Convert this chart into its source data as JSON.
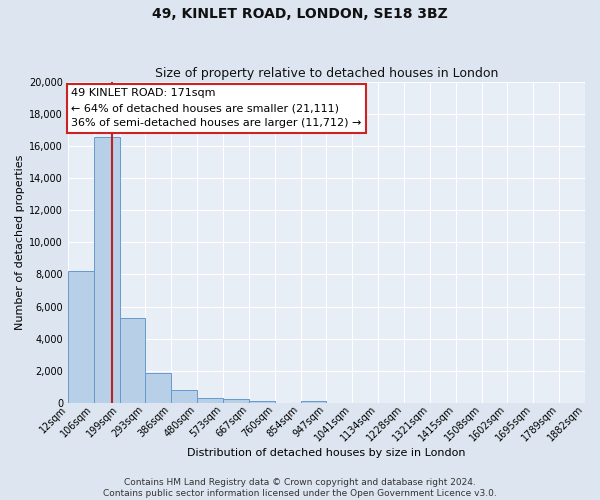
{
  "title": "49, KINLET ROAD, LONDON, SE18 3BZ",
  "subtitle": "Size of property relative to detached houses in London",
  "xlabel": "Distribution of detached houses by size in London",
  "ylabel": "Number of detached properties",
  "bin_labels": [
    "12sqm",
    "106sqm",
    "199sqm",
    "293sqm",
    "386sqm",
    "480sqm",
    "573sqm",
    "667sqm",
    "760sqm",
    "854sqm",
    "947sqm",
    "1041sqm",
    "1134sqm",
    "1228sqm",
    "1321sqm",
    "1415sqm",
    "1508sqm",
    "1602sqm",
    "1695sqm",
    "1789sqm",
    "1882sqm"
  ],
  "bar_values": [
    8200,
    16600,
    5300,
    1850,
    800,
    280,
    200,
    130,
    0,
    130,
    0,
    0,
    0,
    0,
    0,
    0,
    0,
    0,
    0,
    0
  ],
  "bar_color": "#b8cfe8",
  "bar_edge_color": "#6699cc",
  "vline_color": "#bb2222",
  "annotation_text": "49 KINLET ROAD: 171sqm\n← 64% of detached houses are smaller (21,111)\n36% of semi-detached houses are larger (11,712) →",
  "annotation_box_facecolor": "#ffffff",
  "annotation_box_edgecolor": "#cc2222",
  "ylim": [
    0,
    20000
  ],
  "yticks": [
    0,
    2000,
    4000,
    6000,
    8000,
    10000,
    12000,
    14000,
    16000,
    18000,
    20000
  ],
  "footer_line1": "Contains HM Land Registry data © Crown copyright and database right 2024.",
  "footer_line2": "Contains public sector information licensed under the Open Government Licence v3.0.",
  "bg_color": "#dde6f0",
  "plot_bg_color": "#e8eef6",
  "grid_color": "#ffffff",
  "title_fontsize": 10,
  "subtitle_fontsize": 9,
  "axis_label_fontsize": 8,
  "tick_fontsize": 7,
  "annotation_fontsize": 8,
  "footer_fontsize": 6.5
}
